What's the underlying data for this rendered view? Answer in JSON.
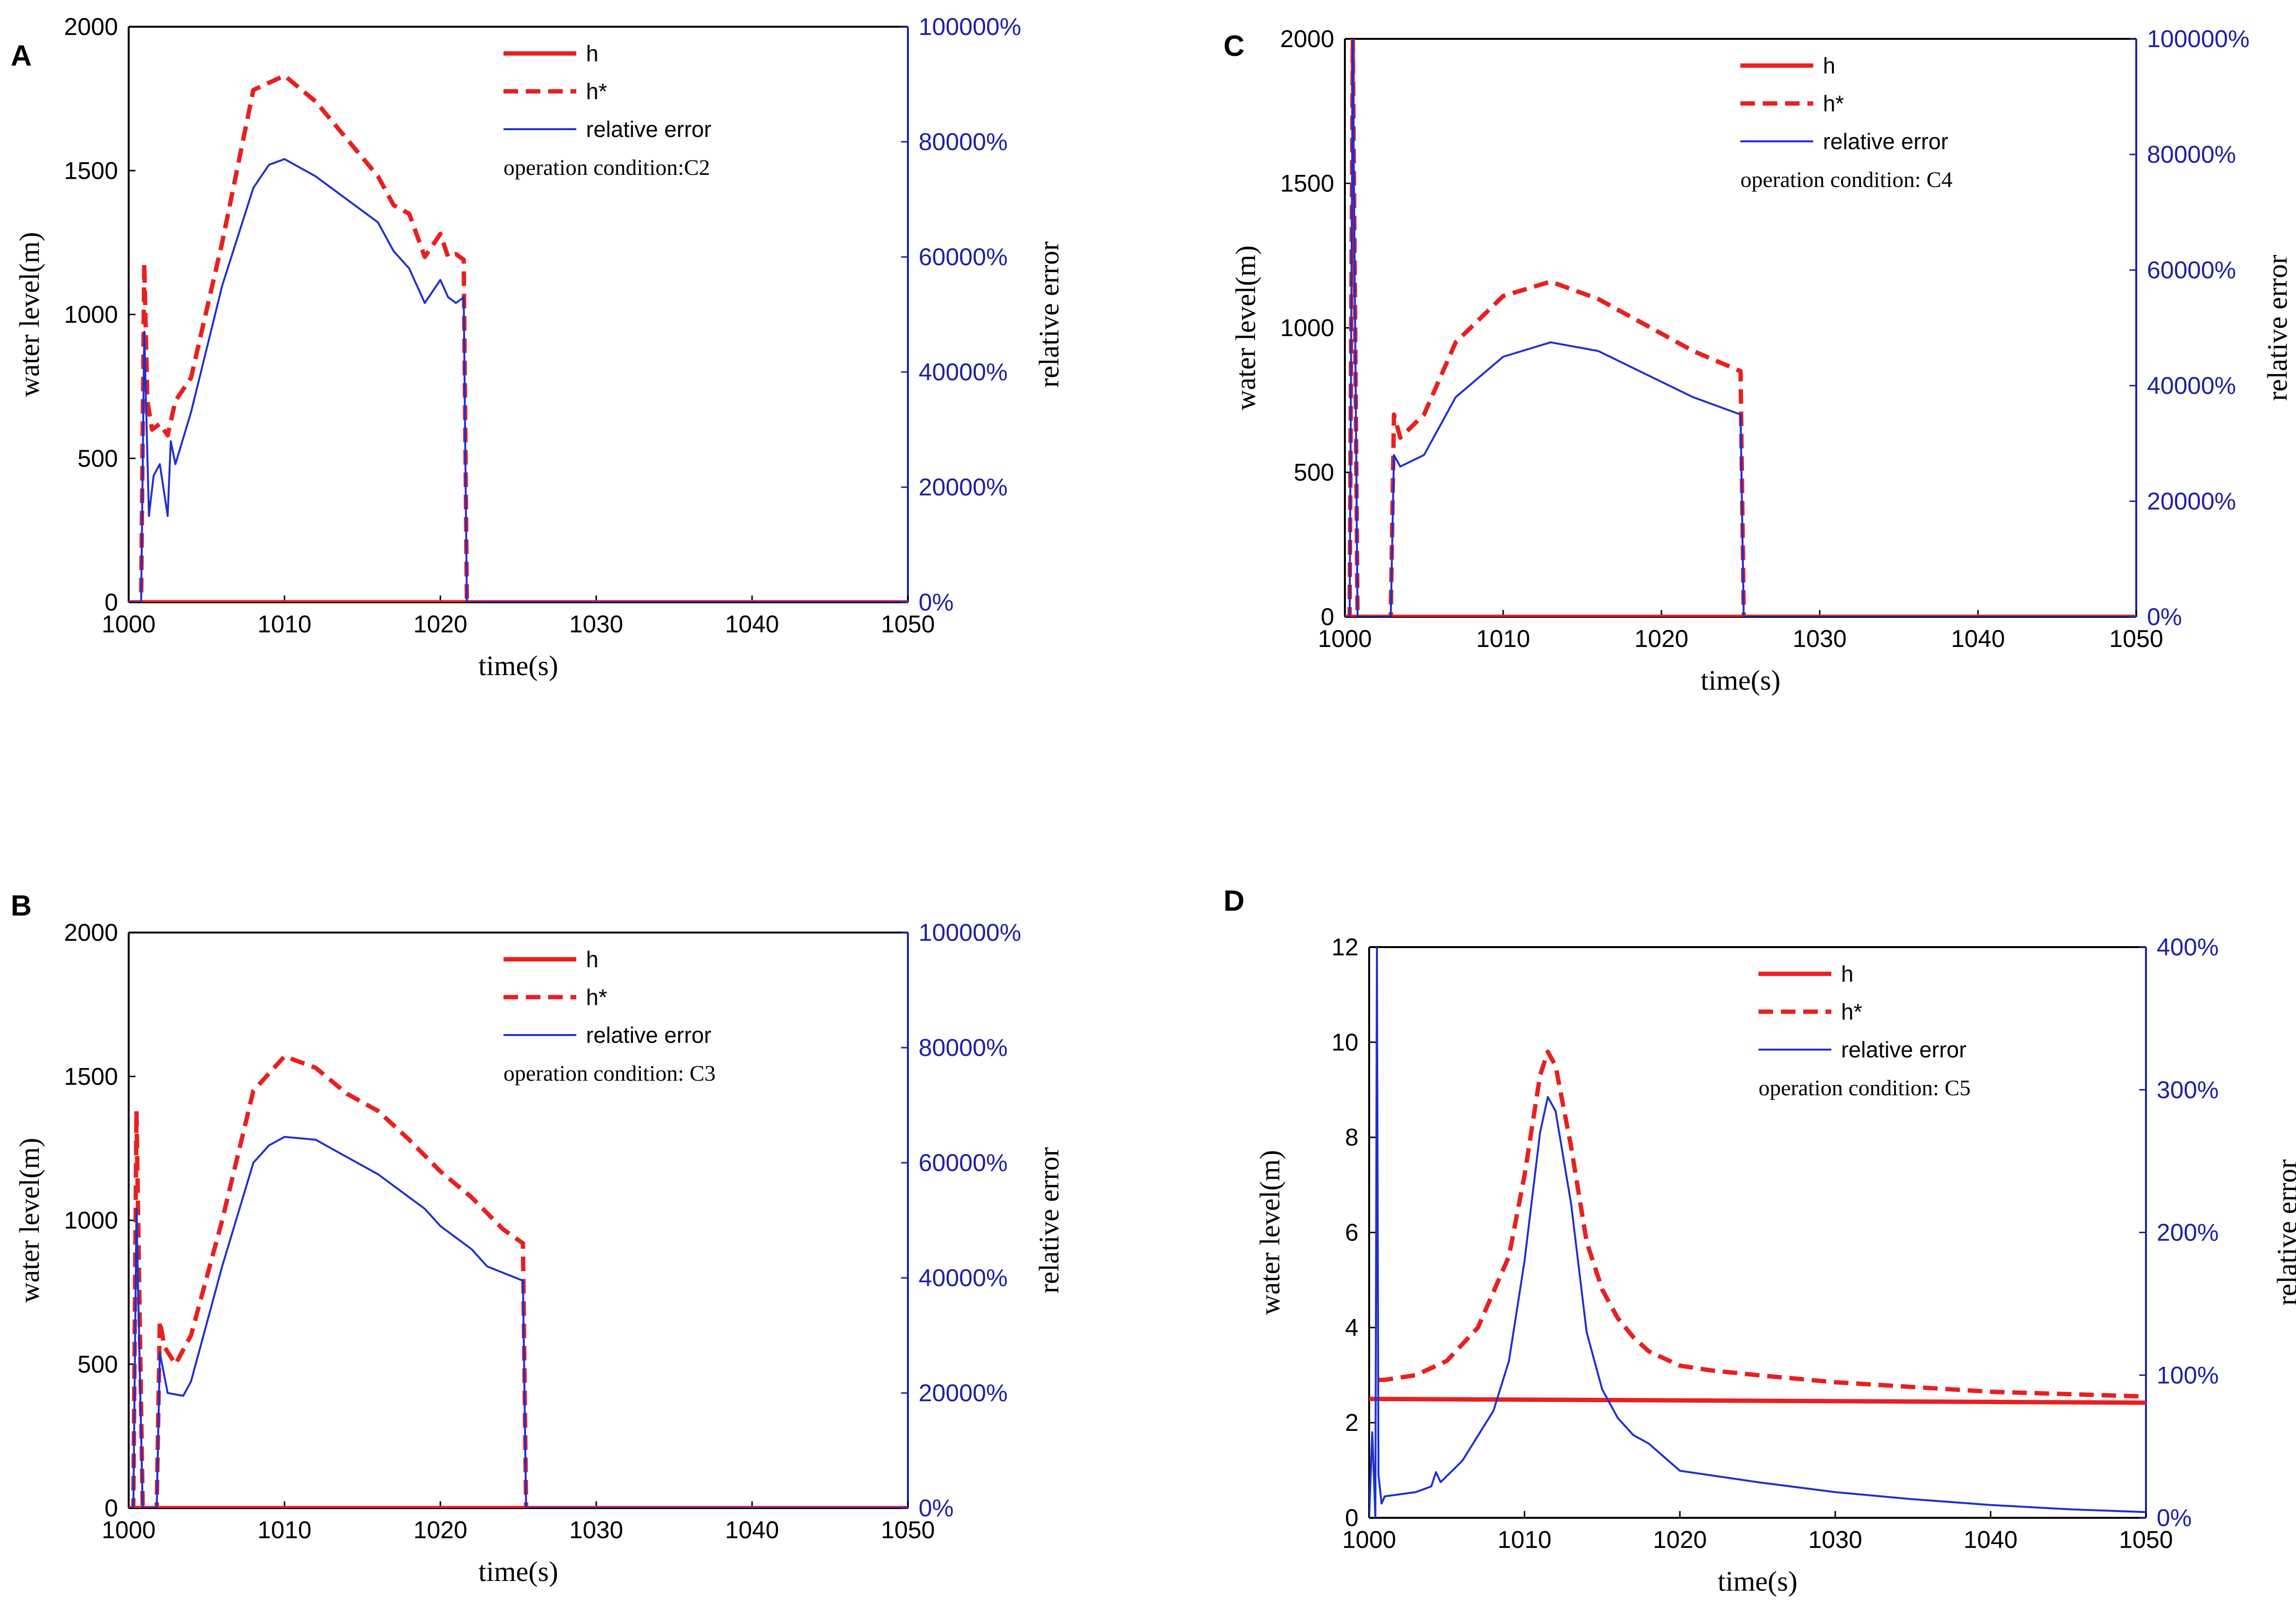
{
  "colors": {
    "h": "#e8201f",
    "h_star": "#e8201f",
    "relative_error": "#1f2fd0",
    "right_axis": "#1f1fa6",
    "frame": "#000000"
  },
  "chart_data": [
    {
      "panel": "A",
      "type": "line",
      "xlabel": "time(s)",
      "ylabel": "water level(m)",
      "y2label": "relative error",
      "xlim": [
        1000,
        1050
      ],
      "ylim": [
        0,
        2000
      ],
      "y2lim": [
        0,
        100000
      ],
      "xticks": [
        "1000",
        "1010",
        "1020",
        "1030",
        "1040",
        "1050"
      ],
      "yticks": [
        "0",
        "500",
        "1000",
        "1500",
        "2000"
      ],
      "y2ticks": [
        "0%",
        "20000%",
        "40000%",
        "60000%",
        "80000%",
        "100000%"
      ],
      "legend": [
        "h",
        "h*",
        "relative error"
      ],
      "annotation": "operation condition:C2",
      "series": [
        {
          "name": "h",
          "axis": "left",
          "x": [
            1000,
            1050
          ],
          "y": [
            0,
            0
          ]
        },
        {
          "name": "h*",
          "axis": "left",
          "x": [
            1000,
            1000.8,
            1001.0,
            1001.2,
            1001.5,
            1002,
            1002.5,
            1003,
            1004,
            1006,
            1008,
            1010,
            1012,
            1014,
            1016,
            1017,
            1018,
            1019,
            1020,
            1020.5,
            1021,
            1021.5,
            1021.7,
            1022,
            1050
          ],
          "y": [
            0,
            0,
            1180,
            700,
            600,
            620,
            580,
            700,
            780,
            1250,
            1780,
            1830,
            1740,
            1610,
            1480,
            1380,
            1350,
            1200,
            1280,
            1200,
            1210,
            1190,
            0,
            0,
            0
          ]
        },
        {
          "name": "relative error",
          "axis": "right",
          "x": [
            1000,
            1000.8,
            1001.0,
            1001.3,
            1001.6,
            1002,
            1002.5,
            1002.7,
            1003,
            1004,
            1006,
            1008,
            1009,
            1010,
            1012,
            1014,
            1016,
            1017,
            1018,
            1019,
            1020,
            1020.5,
            1021,
            1021.5,
            1021.7,
            1022,
            1050
          ],
          "y": [
            0,
            0,
            47000,
            15000,
            22000,
            24000,
            15000,
            28000,
            24000,
            33000,
            55000,
            72000,
            76000,
            77000,
            74000,
            70000,
            66000,
            61000,
            58000,
            52000,
            56000,
            53000,
            52000,
            53000,
            0,
            0,
            0
          ]
        }
      ]
    },
    {
      "panel": "B",
      "type": "line",
      "xlabel": "time(s)",
      "ylabel": "water level(m)",
      "y2label": "relative error",
      "xlim": [
        1000,
        1050
      ],
      "ylim": [
        0,
        2000
      ],
      "y2lim": [
        0,
        100000
      ],
      "xticks": [
        "1000",
        "1010",
        "1020",
        "1030",
        "1040",
        "1050"
      ],
      "yticks": [
        "0",
        "500",
        "1000",
        "1500",
        "2000"
      ],
      "y2ticks": [
        "0%",
        "20000%",
        "40000%",
        "60000%",
        "80000%",
        "100000%"
      ],
      "legend": [
        "h",
        "h*",
        "relative error"
      ],
      "annotation": "operation condition: C3",
      "series": [
        {
          "name": "h",
          "axis": "left",
          "x": [
            1000,
            1050
          ],
          "y": [
            0,
            0
          ]
        },
        {
          "name": "h*",
          "axis": "left",
          "x": [
            1000,
            1000.3,
            1000.5,
            1000.9,
            1001.8,
            1002.0,
            1002.3,
            1003,
            1004,
            1006,
            1008,
            1010,
            1012,
            1014,
            1016,
            1018,
            1020,
            1022,
            1024,
            1025.3,
            1025.5,
            1026,
            1050
          ],
          "y": [
            0,
            0,
            1380,
            0,
            0,
            650,
            560,
            500,
            600,
            1000,
            1450,
            1570,
            1530,
            1440,
            1380,
            1280,
            1170,
            1080,
            970,
            920,
            0,
            0,
            0
          ]
        },
        {
          "name": "relative error",
          "axis": "right",
          "x": [
            1000,
            1000.3,
            1000.5,
            1000.9,
            1001.8,
            1002.0,
            1002.5,
            1003.5,
            1004,
            1006,
            1008,
            1009,
            1010,
            1012,
            1014,
            1016,
            1018,
            1019,
            1020,
            1021,
            1022,
            1023,
            1025.3,
            1025.5,
            1026,
            1050
          ],
          "y": [
            0,
            0,
            52000,
            0,
            0,
            27000,
            20000,
            19500,
            22000,
            42000,
            60000,
            63000,
            64500,
            64000,
            61000,
            58000,
            54000,
            52000,
            49000,
            47000,
            45000,
            42000,
            39500,
            0,
            0,
            0
          ]
        }
      ]
    },
    {
      "panel": "C",
      "type": "line",
      "xlabel": "time(s)",
      "ylabel": "water level(m)",
      "y2label": "relative error",
      "xlim": [
        1000,
        1050
      ],
      "ylim": [
        0,
        2000
      ],
      "y2lim": [
        0,
        100000
      ],
      "xticks": [
        "1000",
        "1010",
        "1020",
        "1030",
        "1040",
        "1050"
      ],
      "yticks": [
        "0",
        "500",
        "1000",
        "1500",
        "2000"
      ],
      "y2ticks": [
        "0%",
        "20000%",
        "40000%",
        "60000%",
        "80000%",
        "100000%"
      ],
      "legend": [
        "h",
        "h*",
        "relative error"
      ],
      "annotation": "operation condition: C4",
      "series": [
        {
          "name": "h",
          "axis": "left",
          "x": [
            1000,
            1050
          ],
          "y": [
            0,
            0
          ]
        },
        {
          "name": "h*",
          "axis": "left",
          "x": [
            1000,
            1000.3,
            1000.5,
            1000.8,
            1002.9,
            1003.1,
            1003.5,
            1005,
            1007,
            1010,
            1013,
            1016,
            1019,
            1022,
            1025,
            1025.2,
            1025.5,
            1050
          ],
          "y": [
            0,
            0,
            2000,
            0,
            0,
            700,
            620,
            700,
            950,
            1110,
            1160,
            1100,
            1010,
            920,
            850,
            0,
            0,
            0
          ]
        },
        {
          "name": "relative error",
          "axis": "right",
          "x": [
            1000,
            1000.3,
            1000.5,
            1000.8,
            1002.9,
            1003.1,
            1003.5,
            1005,
            1007,
            1010,
            1013,
            1016,
            1019,
            1022,
            1025,
            1025.2,
            1025.5,
            1050
          ],
          "y": [
            0,
            0,
            100000,
            0,
            0,
            28000,
            26000,
            28000,
            38000,
            45000,
            47500,
            46000,
            42000,
            38000,
            35000,
            0,
            0,
            0
          ]
        }
      ]
    },
    {
      "panel": "D",
      "type": "line",
      "xlabel": "time(s)",
      "ylabel": "water level(m)",
      "y2label": "relative error",
      "xlim": [
        1000,
        1050
      ],
      "ylim": [
        0,
        12
      ],
      "y2lim": [
        0,
        400
      ],
      "xticks": [
        "1000",
        "1010",
        "1020",
        "1030",
        "1040",
        "1050"
      ],
      "yticks": [
        "0",
        "2",
        "4",
        "6",
        "8",
        "10",
        "12"
      ],
      "y2ticks": [
        "0%",
        "100%",
        "200%",
        "300%",
        "400%"
      ],
      "legend": [
        "h",
        "h*",
        "relative error"
      ],
      "annotation": "operation condition: C5",
      "series": [
        {
          "name": "h",
          "axis": "left",
          "x": [
            1000,
            1050
          ],
          "y": [
            2.5,
            2.42
          ]
        },
        {
          "name": "h*",
          "axis": "left",
          "x": [
            1000.6,
            1001,
            1003,
            1005,
            1007,
            1009,
            1010,
            1011,
            1011.5,
            1012,
            1013,
            1014,
            1015,
            1016,
            1017,
            1018,
            1020,
            1022,
            1025,
            1030,
            1035,
            1040,
            1045,
            1050
          ],
          "y": [
            2.9,
            2.9,
            3.0,
            3.3,
            4.0,
            5.5,
            7.2,
            9.3,
            9.8,
            9.5,
            7.8,
            5.8,
            4.8,
            4.2,
            3.8,
            3.5,
            3.2,
            3.1,
            3.0,
            2.85,
            2.75,
            2.65,
            2.6,
            2.55
          ]
        },
        {
          "name": "relative error",
          "axis": "right",
          "x": [
            1000,
            1000.2,
            1000.4,
            1000.5,
            1000.6,
            1000.8,
            1001,
            1003,
            1004,
            1004.3,
            1004.6,
            1006,
            1008,
            1009,
            1010,
            1011,
            1011.5,
            1012,
            1013,
            1014,
            1015,
            1016,
            1017,
            1018,
            1020,
            1025,
            1030,
            1035,
            1040,
            1045,
            1050
          ],
          "y": [
            0,
            60,
            0,
            400,
            30,
            10,
            15,
            18,
            22,
            32,
            25,
            40,
            75,
            110,
            180,
            270,
            295,
            285,
            220,
            130,
            90,
            70,
            58,
            52,
            33,
            25,
            18,
            13,
            9,
            6,
            4
          ]
        }
      ]
    }
  ]
}
